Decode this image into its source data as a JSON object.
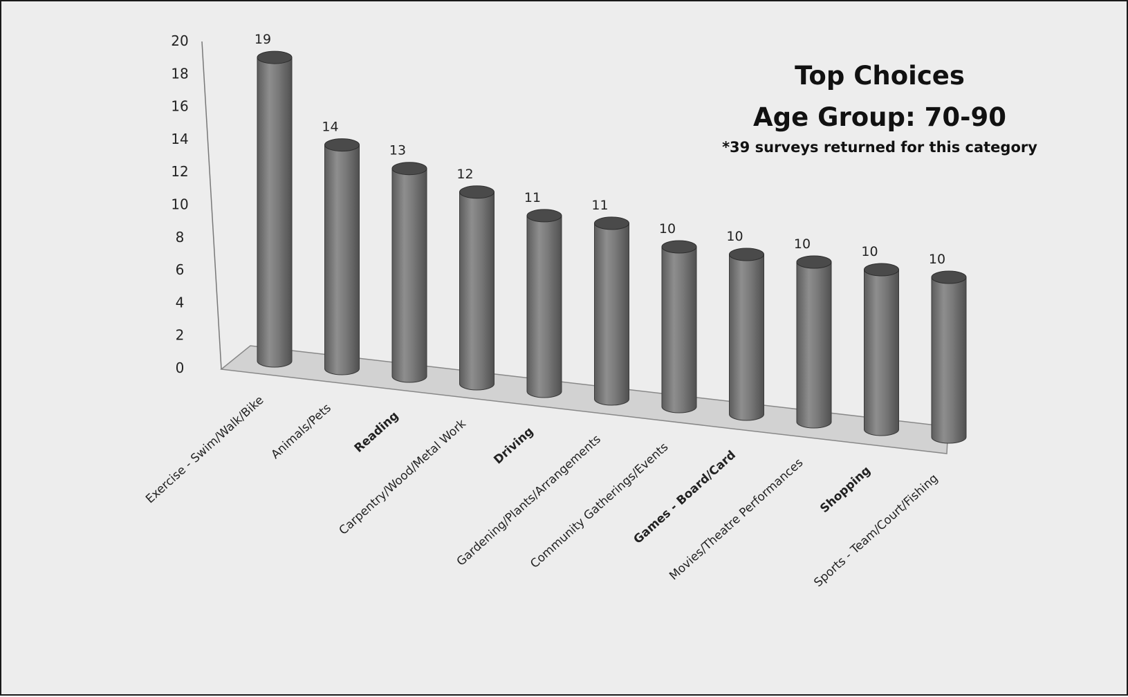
{
  "chart_data": {
    "type": "bar",
    "style": "3d-cylinder",
    "title": "Top Choices",
    "subtitle": "Age Group: 70-90",
    "note": "*39 surveys returned for this category",
    "categories": [
      "Exercise - Swim/Walk/Bike",
      "Animals/Pets",
      "Reading",
      "Carpentry/Wood/Metal Work",
      "Driving",
      "Gardening/Plants/Arrangements",
      "Community Gatherings/Events",
      "Games - Board/Card",
      "Movies/Theatre Performances",
      "Shopping",
      "Sports - Team/Court/Fishing"
    ],
    "bold_categories": [
      "Reading",
      "Driving",
      "Games - Board/Card",
      "Shopping"
    ],
    "values": [
      19,
      14,
      13,
      12,
      11,
      11,
      10,
      10,
      10,
      10,
      10
    ],
    "ylim": [
      0,
      20
    ],
    "yticks": [
      0,
      2,
      4,
      6,
      8,
      10,
      12,
      14,
      16,
      18,
      20
    ],
    "xlabel": "",
    "ylabel": "",
    "grid": false,
    "legend": "none",
    "colors": {
      "bar": "#7b7b7b",
      "bar_top": "#4a4a4a",
      "floor": "#d2d2d2",
      "background": "#ededed"
    }
  }
}
